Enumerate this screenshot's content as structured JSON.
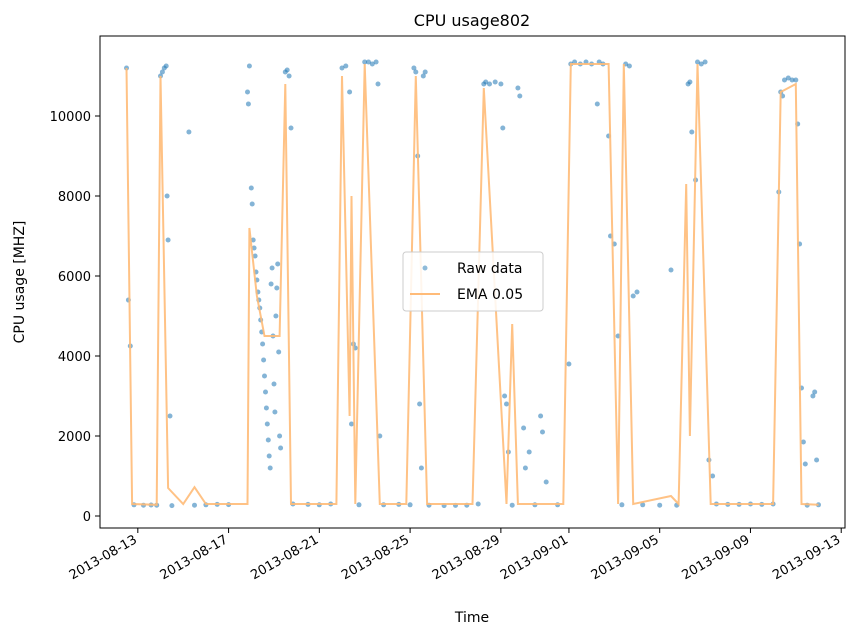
{
  "chart_data": {
    "type": "scatter",
    "title": "CPU usage802",
    "xlabel": "Time",
    "ylabel": "CPU usage [MHZ]",
    "x_ticks": [
      "2013-08-13",
      "2013-08-17",
      "2013-08-21",
      "2013-08-25",
      "2013-08-29",
      "2013-09-01",
      "2013-09-05",
      "2013-09-09",
      "2013-09-13"
    ],
    "y_ticks": [
      0,
      2000,
      4000,
      6000,
      8000,
      10000
    ],
    "ylim": [
      -300,
      12000
    ],
    "legend_position": "center",
    "series": [
      {
        "name": "Raw data",
        "kind": "scatter",
        "color": "#1f77b4",
        "points": [
          [
            "2013-08-12 12:00",
            11200
          ],
          [
            "2013-08-12 14:00",
            5400
          ],
          [
            "2013-08-12 16:00",
            4250
          ],
          [
            "2013-08-12 20:00",
            280
          ],
          [
            "2013-08-13 06:00",
            270
          ],
          [
            "2013-08-13 14:00",
            275
          ],
          [
            "2013-08-13 20:00",
            270
          ],
          [
            "2013-08-14 00:00",
            11000
          ],
          [
            "2013-08-14 02:00",
            11100
          ],
          [
            "2013-08-14 04:00",
            11200
          ],
          [
            "2013-08-14 06:00",
            11250
          ],
          [
            "2013-08-14 07:00",
            8000
          ],
          [
            "2013-08-14 08:00",
            6900
          ],
          [
            "2013-08-14 10:00",
            2500
          ],
          [
            "2013-08-14 12:00",
            260
          ],
          [
            "2013-08-15 06:00",
            9600
          ],
          [
            "2013-08-15 12:00",
            270
          ],
          [
            "2013-08-16 00:00",
            280
          ],
          [
            "2013-08-16 12:00",
            290
          ],
          [
            "2013-08-17 00:00",
            285
          ],
          [
            "2013-08-17 20:00",
            10600
          ],
          [
            "2013-08-17 21:00",
            10300
          ],
          [
            "2013-08-17 22:00",
            11250
          ],
          [
            "2013-08-18 00:00",
            8200
          ],
          [
            "2013-08-18 01:00",
            7800
          ],
          [
            "2013-08-18 02:00",
            6900
          ],
          [
            "2013-08-18 03:00",
            6700
          ],
          [
            "2013-08-18 04:00",
            6500
          ],
          [
            "2013-08-18 05:00",
            6100
          ],
          [
            "2013-08-18 06:00",
            5900
          ],
          [
            "2013-08-18 07:00",
            5600
          ],
          [
            "2013-08-18 08:00",
            5400
          ],
          [
            "2013-08-18 09:00",
            5200
          ],
          [
            "2013-08-18 10:00",
            4900
          ],
          [
            "2013-08-18 11:00",
            4600
          ],
          [
            "2013-08-18 12:00",
            4300
          ],
          [
            "2013-08-18 13:00",
            3900
          ],
          [
            "2013-08-18 14:00",
            3500
          ],
          [
            "2013-08-18 15:00",
            3100
          ],
          [
            "2013-08-18 16:00",
            2700
          ],
          [
            "2013-08-18 17:00",
            2300
          ],
          [
            "2013-08-18 18:00",
            1900
          ],
          [
            "2013-08-18 19:00",
            1500
          ],
          [
            "2013-08-18 20:00",
            1200
          ],
          [
            "2013-08-18 21:00",
            5800
          ],
          [
            "2013-08-18 22:00",
            6200
          ],
          [
            "2013-08-18 23:00",
            4500
          ],
          [
            "2013-08-19 00:00",
            3300
          ],
          [
            "2013-08-19 01:00",
            2600
          ],
          [
            "2013-08-19 02:00",
            5000
          ],
          [
            "2013-08-19 03:00",
            5700
          ],
          [
            "2013-08-19 04:00",
            6300
          ],
          [
            "2013-08-19 05:00",
            4100
          ],
          [
            "2013-08-19 06:00",
            2000
          ],
          [
            "2013-08-19 07:00",
            1700
          ],
          [
            "2013-08-19 12:00",
            11100
          ],
          [
            "2013-08-19 14:00",
            11150
          ],
          [
            "2013-08-19 16:00",
            11000
          ],
          [
            "2013-08-19 18:00",
            9700
          ],
          [
            "2013-08-19 20:00",
            300
          ],
          [
            "2013-08-20 12:00",
            290
          ],
          [
            "2013-08-21 00:00",
            280
          ],
          [
            "2013-08-21 12:00",
            300
          ],
          [
            "2013-08-22 00:00",
            11200
          ],
          [
            "2013-08-22 04:00",
            11250
          ],
          [
            "2013-08-22 08:00",
            10600
          ],
          [
            "2013-08-22 10:00",
            2300
          ],
          [
            "2013-08-22 12:00",
            4300
          ],
          [
            "2013-08-22 14:00",
            4200
          ],
          [
            "2013-08-22 18:00",
            280
          ],
          [
            "2013-08-23 00:00",
            11350
          ],
          [
            "2013-08-23 04:00",
            11350
          ],
          [
            "2013-08-23 08:00",
            11300
          ],
          [
            "2013-08-23 12:00",
            11350
          ],
          [
            "2013-08-23 14:00",
            10800
          ],
          [
            "2013-08-23 16:00",
            2000
          ],
          [
            "2013-08-23 20:00",
            280
          ],
          [
            "2013-08-24 12:00",
            290
          ],
          [
            "2013-08-25 00:00",
            280
          ],
          [
            "2013-08-25 04:00",
            11200
          ],
          [
            "2013-08-25 06:00",
            11100
          ],
          [
            "2013-08-25 08:00",
            9000
          ],
          [
            "2013-08-25 10:00",
            2800
          ],
          [
            "2013-08-25 12:00",
            1200
          ],
          [
            "2013-08-25 14:00",
            11000
          ],
          [
            "2013-08-25 16:00",
            11100
          ],
          [
            "2013-08-25 20:00",
            270
          ],
          [
            "2013-08-26 12:00",
            260
          ],
          [
            "2013-08-27 00:00",
            265
          ],
          [
            "2013-08-27 12:00",
            270
          ],
          [
            "2013-08-28 00:00",
            300
          ],
          [
            "2013-08-28 06:00",
            10800
          ],
          [
            "2013-08-28 08:00",
            10850
          ],
          [
            "2013-08-28 12:00",
            10800
          ],
          [
            "2013-08-28 18:00",
            10850
          ],
          [
            "2013-08-29 00:00",
            10800
          ],
          [
            "2013-08-29 02:00",
            9700
          ],
          [
            "2013-08-29 04:00",
            3000
          ],
          [
            "2013-08-29 06:00",
            2800
          ],
          [
            "2013-08-29 08:00",
            1600
          ],
          [
            "2013-08-29 12:00",
            270
          ],
          [
            "2013-08-29 18:00",
            10700
          ],
          [
            "2013-08-29 20:00",
            10500
          ],
          [
            "2013-08-30 00:00",
            2200
          ],
          [
            "2013-08-30 02:00",
            1200
          ],
          [
            "2013-08-30 06:00",
            1600
          ],
          [
            "2013-08-30 12:00",
            280
          ],
          [
            "2013-08-30 18:00",
            2500
          ],
          [
            "2013-08-30 20:00",
            2100
          ],
          [
            "2013-08-31 00:00",
            850
          ],
          [
            "2013-08-31 12:00",
            280
          ],
          [
            "2013-09-01 00:00",
            3800
          ],
          [
            "2013-09-01 02:00",
            11300
          ],
          [
            "2013-09-01 06:00",
            11350
          ],
          [
            "2013-09-01 12:00",
            11300
          ],
          [
            "2013-09-01 18:00",
            11350
          ],
          [
            "2013-09-02 00:00",
            11300
          ],
          [
            "2013-09-02 06:00",
            10300
          ],
          [
            "2013-09-02 08:00",
            11350
          ],
          [
            "2013-09-02 12:00",
            11300
          ],
          [
            "2013-09-02 18:00",
            9500
          ],
          [
            "2013-09-02 20:00",
            7000
          ],
          [
            "2013-09-03 00:00",
            6800
          ],
          [
            "2013-09-03 04:00",
            4500
          ],
          [
            "2013-09-03 08:00",
            280
          ],
          [
            "2013-09-03 12:00",
            11300
          ],
          [
            "2013-09-03 16:00",
            11250
          ],
          [
            "2013-09-03 20:00",
            5500
          ],
          [
            "2013-09-04 00:00",
            5600
          ],
          [
            "2013-09-04 06:00",
            280
          ],
          [
            "2013-09-05 00:00",
            270
          ],
          [
            "2013-09-05 12:00",
            6150
          ],
          [
            "2013-09-05 18:00",
            270
          ],
          [
            "2013-09-06 06:00",
            10800
          ],
          [
            "2013-09-06 08:00",
            10850
          ],
          [
            "2013-09-06 10:00",
            9600
          ],
          [
            "2013-09-06 14:00",
            8400
          ],
          [
            "2013-09-06 16:00",
            11350
          ],
          [
            "2013-09-06 20:00",
            11300
          ],
          [
            "2013-09-07 00:00",
            11350
          ],
          [
            "2013-09-07 04:00",
            1400
          ],
          [
            "2013-09-07 08:00",
            1000
          ],
          [
            "2013-09-07 12:00",
            300
          ],
          [
            "2013-09-08 00:00",
            290
          ],
          [
            "2013-09-08 12:00",
            290
          ],
          [
            "2013-09-09 00:00",
            300
          ],
          [
            "2013-09-09 12:00",
            290
          ],
          [
            "2013-09-10 00:00",
            300
          ],
          [
            "2013-09-10 06:00",
            8100
          ],
          [
            "2013-09-10 08:00",
            10600
          ],
          [
            "2013-09-10 10:00",
            10500
          ],
          [
            "2013-09-10 12:00",
            10900
          ],
          [
            "2013-09-10 16:00",
            10950
          ],
          [
            "2013-09-10 20:00",
            10900
          ],
          [
            "2013-09-11 00:00",
            10900
          ],
          [
            "2013-09-11 02:00",
            9800
          ],
          [
            "2013-09-11 04:00",
            6800
          ],
          [
            "2013-09-11 06:00",
            3200
          ],
          [
            "2013-09-11 08:00",
            1850
          ],
          [
            "2013-09-11 10:00",
            1300
          ],
          [
            "2013-09-11 12:00",
            270
          ],
          [
            "2013-09-11 18:00",
            3000
          ],
          [
            "2013-09-11 20:00",
            3100
          ],
          [
            "2013-09-11 22:00",
            1400
          ],
          [
            "2013-09-12 00:00",
            280
          ]
        ]
      },
      {
        "name": "EMA 0.05",
        "kind": "line",
        "color": "#ffbb78",
        "points": [
          [
            "2013-08-12 12:00",
            11200
          ],
          [
            "2013-08-12 18:00",
            300
          ],
          [
            "2013-08-13 20:00",
            280
          ],
          [
            "2013-08-14 00:00",
            11000
          ],
          [
            "2013-08-14 08:00",
            700
          ],
          [
            "2013-08-15 00:00",
            300
          ],
          [
            "2013-08-15 12:00",
            720
          ],
          [
            "2013-08-16 00:00",
            300
          ],
          [
            "2013-08-17 20:00",
            300
          ],
          [
            "2013-08-17 22:00",
            7200
          ],
          [
            "2013-08-18 06:00",
            5500
          ],
          [
            "2013-08-18 14:00",
            4500
          ],
          [
            "2013-08-19 06:00",
            4500
          ],
          [
            "2013-08-19 12:00",
            10800
          ],
          [
            "2013-08-19 18:00",
            300
          ],
          [
            "2013-08-21 18:00",
            300
          ],
          [
            "2013-08-22 00:00",
            11000
          ],
          [
            "2013-08-22 08:00",
            2500
          ],
          [
            "2013-08-22 10:00",
            8000
          ],
          [
            "2013-08-22 14:00",
            300
          ],
          [
            "2013-08-23 00:00",
            11300
          ],
          [
            "2013-08-23 16:00",
            300
          ],
          [
            "2013-08-24 20:00",
            300
          ],
          [
            "2013-08-25 06:00",
            11000
          ],
          [
            "2013-08-25 18:00",
            300
          ],
          [
            "2013-08-27 18:00",
            300
          ],
          [
            "2013-08-28 06:00",
            10700
          ],
          [
            "2013-08-29 06:00",
            300
          ],
          [
            "2013-08-29 12:00",
            4800
          ],
          [
            "2013-08-29 18:00",
            300
          ],
          [
            "2013-08-31 18:00",
            300
          ],
          [
            "2013-09-01 02:00",
            11300
          ],
          [
            "2013-09-02 18:00",
            11300
          ],
          [
            "2013-09-03 04:00",
            300
          ],
          [
            "2013-09-03 10:00",
            11300
          ],
          [
            "2013-09-03 20:00",
            300
          ],
          [
            "2013-09-05 12:00",
            500
          ],
          [
            "2013-09-05 20:00",
            300
          ],
          [
            "2013-09-06 04:00",
            8300
          ],
          [
            "2013-09-06 08:00",
            2000
          ],
          [
            "2013-09-06 16:00",
            11300
          ],
          [
            "2013-09-07 06:00",
            300
          ],
          [
            "2013-09-10 00:00",
            300
          ],
          [
            "2013-09-10 08:00",
            10600
          ],
          [
            "2013-09-11 00:00",
            10800
          ],
          [
            "2013-09-11 06:00",
            300
          ],
          [
            "2013-09-12 00:00",
            280
          ]
        ]
      }
    ]
  }
}
